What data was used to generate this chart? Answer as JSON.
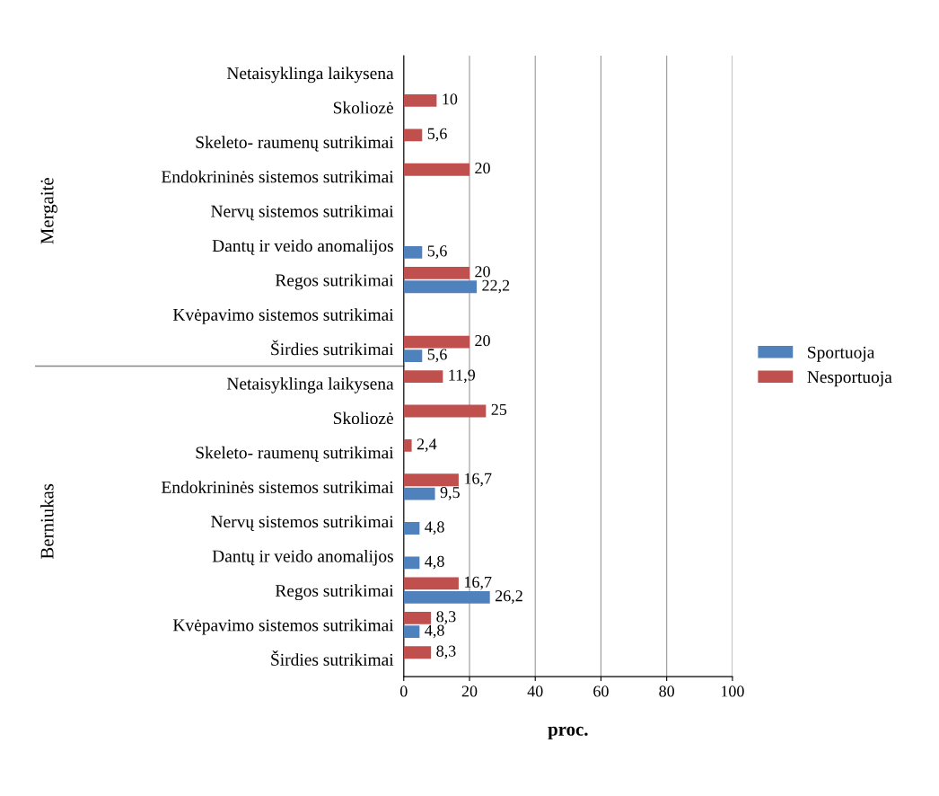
{
  "chart_data": {
    "type": "bar",
    "orientation": "horizontal",
    "xlabel": "proc.",
    "categories": [
      "Netaisyklinga laikysena",
      "Skoliozė",
      "Skeleto- raumenų sutrikimai",
      "Endokrininės sistemos sutrikimai",
      "Nervų sistemos sutrikimai",
      "Dantų ir veido anomalijos",
      "Regos sutrikimai",
      "Kvėpavimo sistemos sutrikimai",
      "Širdies sutrikimai",
      "Netaisyklinga laikysena",
      "Skoliozė",
      "Skeleto- raumenų sutrikimai",
      "Endokrininės sistemos sutrikimai",
      "Nervų sistemos sutrikimai",
      "Dantų ir veido anomalijos",
      "Regos sutrikimai",
      "Kvėpavimo sistemos sutrikimai",
      "Širdies sutrikimai"
    ],
    "series": [
      {
        "name": "Nesportuoja",
        "color": "#c0504d",
        "values": [
          0,
          10,
          5.6,
          20,
          0,
          0,
          20,
          0,
          20,
          11.9,
          25,
          2.4,
          16.7,
          0,
          0,
          16.7,
          8.3,
          8.3
        ],
        "value_labels": [
          null,
          "10",
          "5,6",
          "20",
          null,
          null,
          "20",
          null,
          "20",
          "11,9",
          "25",
          "2,4",
          "16,7",
          null,
          null,
          "16,7",
          "8,3",
          "8,3"
        ]
      },
      {
        "name": "Sportuoja",
        "color": "#4f81bd",
        "values": [
          0,
          0,
          0,
          0,
          0,
          5.6,
          22.2,
          0,
          5.6,
          0,
          0,
          0,
          9.5,
          4.8,
          4.8,
          26.2,
          4.8,
          0
        ],
        "value_labels": [
          null,
          null,
          null,
          null,
          null,
          "5,6",
          "22,2",
          null,
          "5,6",
          null,
          null,
          null,
          "9,5",
          "4,8",
          "4,8",
          "26,2",
          "4,8",
          null
        ]
      }
    ],
    "annotations": [
      "Mergaitė",
      "Berniukas"
    ],
    "xlim": [
      0,
      100
    ],
    "xticks": [
      0,
      20,
      40,
      60,
      80,
      100
    ],
    "grid": "x",
    "legend": "right"
  }
}
